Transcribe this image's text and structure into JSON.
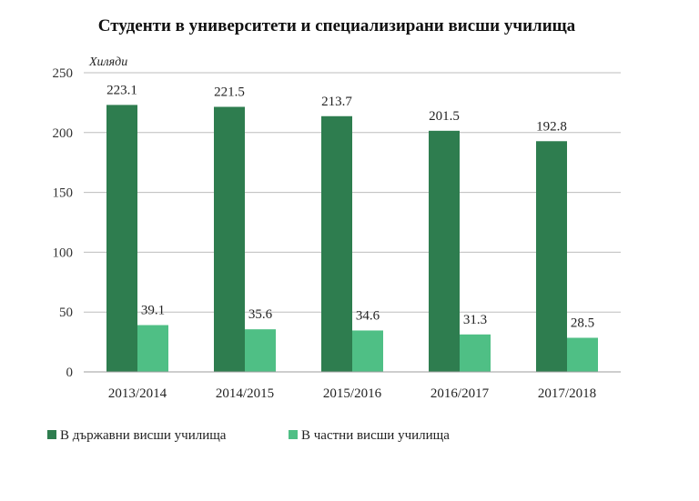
{
  "chart_data": {
    "type": "bar",
    "title": "Студенти в университети и специализирани висши училища",
    "unit_label": "Хиляди",
    "categories": [
      "2013/2014",
      "2014/2015",
      "2015/2016",
      "2016/2017",
      "2017/2018"
    ],
    "series": [
      {
        "name": "В държавни висши училища",
        "values": [
          223.1,
          221.5,
          213.7,
          201.5,
          192.8
        ],
        "color": "#2e7d4f"
      },
      {
        "name": "В частни висши училища",
        "values": [
          39.1,
          35.6,
          34.6,
          31.3,
          28.5
        ],
        "color": "#4fbf85"
      }
    ],
    "ylim": [
      0,
      250
    ],
    "yticks": [
      0,
      50,
      100,
      150,
      200,
      250
    ],
    "grid": true,
    "legend_position": "bottom-left"
  }
}
